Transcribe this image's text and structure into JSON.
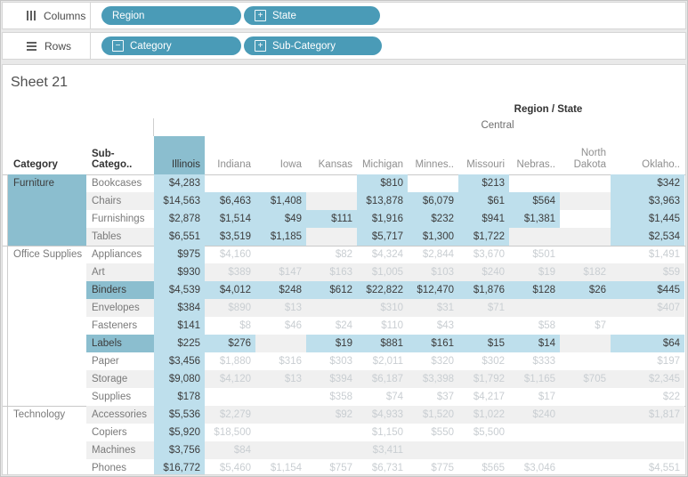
{
  "colors": {
    "pill_teal": "#4A9BB7",
    "selected_header_teal": "#8BBECF",
    "highlight_cell_blue": "#BEDFEC",
    "row_band_grey": "#F0F0F0",
    "dimmed_text_grey": "#C9CED2",
    "dark_text": "#3C3C3C"
  },
  "shelves": {
    "columns": {
      "label": "Columns",
      "pills": [
        {
          "label": "Region",
          "expander": ""
        },
        {
          "label": "State",
          "expander": "+"
        }
      ]
    },
    "rows": {
      "label": "Rows",
      "pills": [
        {
          "label": "Category",
          "expander": "−"
        },
        {
          "label": "Sub-Category",
          "expander": "+"
        }
      ]
    }
  },
  "sheet": {
    "title": "Sheet 21",
    "field_labels": "Region / State",
    "region_label": "Central",
    "corner": {
      "category": "Category",
      "subcategory": "Sub-Catego.."
    },
    "columns": [
      {
        "label": "Illinois",
        "selected": true
      },
      {
        "label": "Indiana",
        "selected": false
      },
      {
        "label": "Iowa",
        "selected": false
      },
      {
        "label": "Kansas",
        "selected": false
      },
      {
        "label": "Michigan",
        "selected": false
      },
      {
        "label": "Minnes..",
        "selected": false
      },
      {
        "label": "Missouri",
        "selected": false
      },
      {
        "label": "Nebras..",
        "selected": false
      },
      {
        "label": "North Dakota",
        "selected": false
      },
      {
        "label": "Oklaho..",
        "selected": false
      }
    ],
    "groups": [
      {
        "category": "Furniture",
        "selected": true,
        "rows": [
          {
            "label": "Bookcases",
            "selected": false,
            "values": [
              "$4,283",
              "",
              "",
              "",
              "$810",
              "",
              "$213",
              "",
              "",
              "$342"
            ]
          },
          {
            "label": "Chairs",
            "selected": false,
            "values": [
              "$14,563",
              "$6,463",
              "$1,408",
              "",
              "$13,878",
              "$6,079",
              "$61",
              "$564",
              "",
              "$3,963"
            ]
          },
          {
            "label": "Furnishings",
            "selected": false,
            "values": [
              "$2,878",
              "$1,514",
              "$49",
              "$111",
              "$1,916",
              "$232",
              "$941",
              "$1,381",
              "",
              "$1,445"
            ]
          },
          {
            "label": "Tables",
            "selected": false,
            "values": [
              "$6,551",
              "$3,519",
              "$1,185",
              "",
              "$5,717",
              "$1,300",
              "$1,722",
              "",
              "",
              "$2,534"
            ]
          }
        ]
      },
      {
        "category": "Office Supplies",
        "selected": false,
        "rows": [
          {
            "label": "Appliances",
            "selected": false,
            "values": [
              "$975",
              "$4,160",
              "",
              "$82",
              "$4,324",
              "$2,844",
              "$3,670",
              "$501",
              "",
              "$1,491"
            ]
          },
          {
            "label": "Art",
            "selected": false,
            "values": [
              "$930",
              "$389",
              "$147",
              "$163",
              "$1,005",
              "$103",
              "$240",
              "$19",
              "$182",
              "$59"
            ]
          },
          {
            "label": "Binders",
            "selected": true,
            "values": [
              "$4,539",
              "$4,012",
              "$248",
              "$612",
              "$22,822",
              "$12,470",
              "$1,876",
              "$128",
              "$26",
              "$445"
            ]
          },
          {
            "label": "Envelopes",
            "selected": false,
            "values": [
              "$384",
              "$890",
              "$13",
              "",
              "$310",
              "$31",
              "$71",
              "",
              "",
              "$407"
            ]
          },
          {
            "label": "Fasteners",
            "selected": false,
            "values": [
              "$141",
              "$8",
              "$46",
              "$24",
              "$110",
              "$43",
              "",
              "$58",
              "$7",
              ""
            ]
          },
          {
            "label": "Labels",
            "selected": true,
            "values": [
              "$225",
              "$276",
              "",
              "$19",
              "$881",
              "$161",
              "$15",
              "$14",
              "",
              "$64"
            ]
          },
          {
            "label": "Paper",
            "selected": false,
            "values": [
              "$3,456",
              "$1,880",
              "$316",
              "$303",
              "$2,011",
              "$320",
              "$302",
              "$333",
              "",
              "$197"
            ]
          },
          {
            "label": "Storage",
            "selected": false,
            "values": [
              "$9,080",
              "$4,120",
              "$13",
              "$394",
              "$6,187",
              "$3,398",
              "$1,792",
              "$1,165",
              "$705",
              "$2,345"
            ]
          },
          {
            "label": "Supplies",
            "selected": false,
            "values": [
              "$178",
              "",
              "",
              "$358",
              "$74",
              "$37",
              "$4,217",
              "$17",
              "",
              "$22"
            ]
          }
        ]
      },
      {
        "category": "Technology",
        "selected": false,
        "rows": [
          {
            "label": "Accessories",
            "selected": false,
            "values": [
              "$5,536",
              "$2,279",
              "",
              "$92",
              "$4,933",
              "$1,520",
              "$1,022",
              "$240",
              "",
              "$1,817"
            ]
          },
          {
            "label": "Copiers",
            "selected": false,
            "values": [
              "$5,920",
              "$18,500",
              "",
              "",
              "$1,150",
              "$550",
              "$5,500",
              "",
              "",
              ""
            ]
          },
          {
            "label": "Machines",
            "selected": false,
            "values": [
              "$3,756",
              "$84",
              "",
              "",
              "$3,411",
              "",
              "",
              "",
              "",
              ""
            ]
          },
          {
            "label": "Phones",
            "selected": false,
            "values": [
              "$16,772",
              "$5,460",
              "$1,154",
              "$757",
              "$6,731",
              "$775",
              "$565",
              "$3,046",
              "",
              "$4,551"
            ]
          }
        ]
      }
    ]
  }
}
